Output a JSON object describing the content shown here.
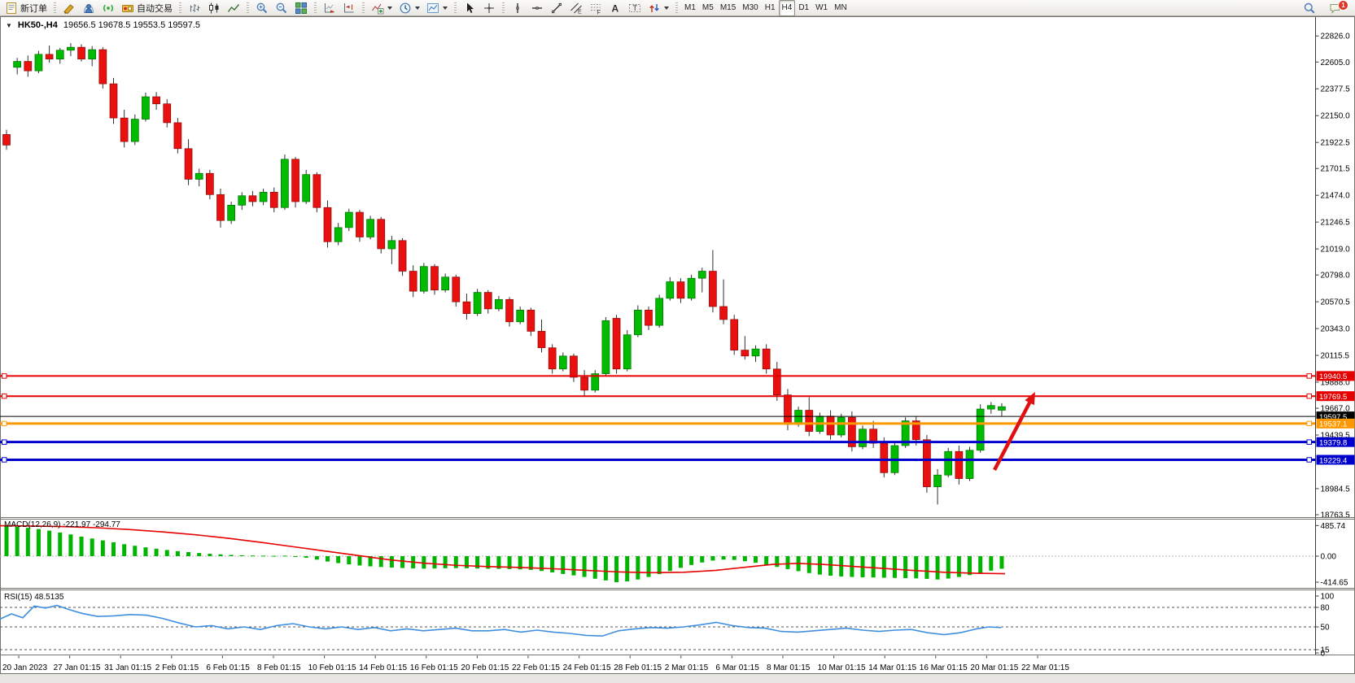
{
  "toolbar": {
    "groups": [
      {
        "items": [
          {
            "name": "new-order-button",
            "icon": "new-order-icon",
            "label": "新订单"
          }
        ]
      },
      {
        "items": [
          {
            "name": "metaeditor-button",
            "icon": "metaeditor-icon"
          },
          {
            "name": "community-button",
            "icon": "community-icon"
          },
          {
            "name": "signals-button",
            "icon": "signals-icon"
          },
          {
            "name": "auto-trading-button",
            "icon": "auto-trading-icon",
            "label": "自动交易"
          }
        ]
      },
      {
        "items": [
          {
            "name": "bar-chart-button",
            "icon": "bar-chart-icon"
          },
          {
            "name": "candlestick-chart-button",
            "icon": "candlestick-icon"
          },
          {
            "name": "line-chart-button",
            "icon": "line-chart-icon"
          }
        ]
      },
      {
        "items": [
          {
            "name": "zoom-in-button",
            "icon": "zoom-in-icon"
          },
          {
            "name": "zoom-out-button",
            "icon": "zoom-out-icon"
          },
          {
            "name": "tile-windows-button",
            "icon": "tile-windows-icon"
          }
        ]
      },
      {
        "items": [
          {
            "name": "auto-scroll-button",
            "icon": "auto-scroll-icon"
          },
          {
            "name": "chart-shift-button",
            "icon": "chart-shift-icon"
          }
        ]
      },
      {
        "items": [
          {
            "name": "indicators-button",
            "icon": "indicators-icon",
            "caret": true
          },
          {
            "name": "periods-button",
            "icon": "clock-icon",
            "caret": true
          },
          {
            "name": "templates-button",
            "icon": "template-icon",
            "caret": true
          }
        ]
      },
      {
        "items": [
          {
            "name": "cursor-button",
            "icon": "cursor-icon"
          },
          {
            "name": "crosshair-button",
            "icon": "crosshair-icon"
          }
        ]
      },
      {
        "items": [
          {
            "name": "vertical-line-button",
            "icon": "vertical-line-icon"
          },
          {
            "name": "horizontal-line-button",
            "icon": "horizontal-line-icon"
          },
          {
            "name": "trendline-button",
            "icon": "trendline-icon"
          },
          {
            "name": "equidistant-channel-button",
            "icon": "channel-icon"
          },
          {
            "name": "fibonacci-button",
            "icon": "fibonacci-icon"
          },
          {
            "name": "text-button",
            "icon": "text-icon"
          },
          {
            "name": "text-label-button",
            "icon": "text-label-icon"
          },
          {
            "name": "arrows-button",
            "icon": "arrows-icon",
            "caret": true
          }
        ]
      },
      {
        "items": [
          {
            "name": "timeframe-m1-button",
            "label": "M1",
            "tf": true
          },
          {
            "name": "timeframe-m5-button",
            "label": "M5",
            "tf": true
          },
          {
            "name": "timeframe-m15-button",
            "label": "M15",
            "tf": true
          },
          {
            "name": "timeframe-m30-button",
            "label": "M30",
            "tf": true
          },
          {
            "name": "timeframe-h1-button",
            "label": "H1",
            "tf": true
          },
          {
            "name": "timeframe-h4-button",
            "label": "H4",
            "tf": true,
            "active": true
          },
          {
            "name": "timeframe-d1-button",
            "label": "D1",
            "tf": true
          },
          {
            "name": "timeframe-w1-button",
            "label": "W1",
            "tf": true
          },
          {
            "name": "timeframe-mn-button",
            "label": "MN",
            "tf": true
          }
        ]
      }
    ],
    "right": [
      {
        "name": "search-button",
        "icon": "search-icon"
      },
      {
        "name": "notifications-button",
        "icon": "chat-icon",
        "badge": "1"
      }
    ]
  },
  "chart": {
    "collapse_glyph": "▼",
    "symbol_period": "HK50-,H4",
    "ohlc": "19656.5 19678.5 19553.5 19597.5"
  },
  "price_axis": {
    "labels": [
      "22826.0",
      "22605.0",
      "22377.5",
      "22150.0",
      "21922.5",
      "21701.5",
      "21474.0",
      "21246.5",
      "21019.0",
      "20798.0",
      "20570.5",
      "20343.0",
      "20115.5",
      "19888.0",
      "19667.0",
      "19439.5",
      "18984.5",
      "18763.5"
    ]
  },
  "price_lines": [
    {
      "value": 19940.5,
      "label": "19940.5",
      "color": "#e60000",
      "width": 2,
      "handles": true
    },
    {
      "value": 19769.5,
      "label": "19769.5",
      "color": "#e60000",
      "width": 2,
      "handles": true
    },
    {
      "value": 19597.5,
      "label": "19597.5",
      "color": "#000000",
      "width": 1,
      "handles": false
    },
    {
      "value": 19537.1,
      "label": "19537.1",
      "color": "#ff9800",
      "width": 3,
      "handles": true
    },
    {
      "value": 19379.8,
      "label": "19379.8",
      "color": "#0000cc",
      "width": 3,
      "handles": true
    },
    {
      "value": 19229.4,
      "label": "19229.4",
      "color": "#0000cc",
      "width": 3,
      "handles": true
    }
  ],
  "colors": {
    "bull": "#00bb00",
    "bull_stroke": "#006e00",
    "bear": "#ea1010",
    "bear_stroke": "#8a0a0a",
    "wick": "#303030",
    "macd_hist": "#00b400",
    "macd_signal": "#e60000",
    "rsi_line": "#3f8fdf",
    "arrow": "#e01010",
    "axis_text": "#000000"
  },
  "candles": [
    [
      21990,
      22030,
      21860,
      21900,
      "d"
    ],
    [
      22560,
      22640,
      22500,
      22610,
      "u"
    ],
    [
      22610,
      22660,
      22480,
      22530,
      "d"
    ],
    [
      22530,
      22700,
      22510,
      22670,
      "u"
    ],
    [
      22670,
      22745,
      22600,
      22630,
      "d"
    ],
    [
      22630,
      22725,
      22590,
      22705,
      "u"
    ],
    [
      22705,
      22765,
      22655,
      22730,
      "u"
    ],
    [
      22730,
      22755,
      22610,
      22630,
      "d"
    ],
    [
      22630,
      22740,
      22570,
      22710,
      "u"
    ],
    [
      22710,
      22730,
      22380,
      22420,
      "d"
    ],
    [
      22420,
      22470,
      22080,
      22130,
      "d"
    ],
    [
      22130,
      22200,
      21880,
      21930,
      "d"
    ],
    [
      21930,
      22160,
      21900,
      22120,
      "u"
    ],
    [
      22120,
      22345,
      22100,
      22310,
      "u"
    ],
    [
      22310,
      22350,
      22200,
      22250,
      "d"
    ],
    [
      22250,
      22290,
      22050,
      22090,
      "d"
    ],
    [
      22090,
      22130,
      21830,
      21870,
      "d"
    ],
    [
      21870,
      21950,
      21560,
      21610,
      "d"
    ],
    [
      21610,
      21700,
      21550,
      21660,
      "u"
    ],
    [
      21660,
      21690,
      21440,
      21480,
      "d"
    ],
    [
      21480,
      21530,
      21200,
      21260,
      "d"
    ],
    [
      21260,
      21420,
      21230,
      21390,
      "u"
    ],
    [
      21390,
      21500,
      21350,
      21470,
      "u"
    ],
    [
      21470,
      21510,
      21380,
      21420,
      "d"
    ],
    [
      21420,
      21530,
      21390,
      21500,
      "u"
    ],
    [
      21500,
      21540,
      21330,
      21370,
      "d"
    ],
    [
      21370,
      21820,
      21350,
      21780,
      "u"
    ],
    [
      21780,
      21800,
      21370,
      21420,
      "d"
    ],
    [
      21420,
      21690,
      21400,
      21650,
      "u"
    ],
    [
      21650,
      21670,
      21330,
      21370,
      "d"
    ],
    [
      21370,
      21430,
      21030,
      21080,
      "d"
    ],
    [
      21080,
      21240,
      21050,
      21200,
      "u"
    ],
    [
      21200,
      21360,
      21170,
      21330,
      "u"
    ],
    [
      21330,
      21350,
      21080,
      21120,
      "d"
    ],
    [
      21120,
      21300,
      21100,
      21270,
      "u"
    ],
    [
      21270,
      21290,
      20980,
      21020,
      "d"
    ],
    [
      21020,
      21130,
      20890,
      21090,
      "u"
    ],
    [
      21090,
      21110,
      20790,
      20830,
      "d"
    ],
    [
      20830,
      20880,
      20610,
      20660,
      "d"
    ],
    [
      20660,
      20900,
      20640,
      20870,
      "u"
    ],
    [
      20870,
      20890,
      20630,
      20670,
      "d"
    ],
    [
      20670,
      20810,
      20650,
      20780,
      "u"
    ],
    [
      20780,
      20800,
      20530,
      20570,
      "d"
    ],
    [
      20570,
      20640,
      20420,
      20470,
      "d"
    ],
    [
      20470,
      20680,
      20450,
      20650,
      "u"
    ],
    [
      20650,
      20670,
      20470,
      20510,
      "d"
    ],
    [
      20510,
      20620,
      20490,
      20590,
      "u"
    ],
    [
      20590,
      20610,
      20360,
      20400,
      "d"
    ],
    [
      20400,
      20530,
      20380,
      20500,
      "u"
    ],
    [
      20500,
      20520,
      20280,
      20320,
      "d"
    ],
    [
      20320,
      20420,
      20140,
      20180,
      "d"
    ],
    [
      20180,
      20210,
      19960,
      20000,
      "d"
    ],
    [
      20000,
      20140,
      19980,
      20110,
      "u"
    ],
    [
      20110,
      20130,
      19890,
      19930,
      "d"
    ],
    [
      19930,
      19990,
      19770,
      19820,
      "d"
    ],
    [
      19820,
      19990,
      19800,
      19960,
      "u"
    ],
    [
      19960,
      20440,
      19940,
      20410,
      "u"
    ],
    [
      20430,
      20460,
      19960,
      20000,
      "d"
    ],
    [
      20000,
      20330,
      19980,
      20290,
      "u"
    ],
    [
      20290,
      20540,
      20270,
      20500,
      "u"
    ],
    [
      20500,
      20530,
      20330,
      20370,
      "d"
    ],
    [
      20370,
      20630,
      20350,
      20600,
      "u"
    ],
    [
      20600,
      20780,
      20580,
      20740,
      "u"
    ],
    [
      20740,
      20770,
      20560,
      20600,
      "d"
    ],
    [
      20600,
      20800,
      20580,
      20770,
      "u"
    ],
    [
      20770,
      20860,
      20650,
      20830,
      "u"
    ],
    [
      20830,
      21010,
      20480,
      20530,
      "d"
    ],
    [
      20530,
      20760,
      20380,
      20420,
      "d"
    ],
    [
      20420,
      20460,
      20120,
      20160,
      "d"
    ],
    [
      20160,
      20280,
      20080,
      20110,
      "d"
    ],
    [
      20110,
      20200,
      20060,
      20170,
      "u"
    ],
    [
      20170,
      20210,
      19960,
      20000,
      "d"
    ],
    [
      20000,
      20060,
      19730,
      19780,
      "d"
    ],
    [
      19780,
      19830,
      19480,
      19530,
      "d"
    ],
    [
      19530,
      19680,
      19510,
      19650,
      "u"
    ],
    [
      19650,
      19760,
      19430,
      19470,
      "d"
    ],
    [
      19470,
      19630,
      19450,
      19600,
      "u"
    ],
    [
      19600,
      19650,
      19400,
      19440,
      "d"
    ],
    [
      19440,
      19620,
      19420,
      19590,
      "u"
    ],
    [
      19590,
      19640,
      19300,
      19340,
      "d"
    ],
    [
      19340,
      19520,
      19320,
      19490,
      "u"
    ],
    [
      19490,
      19560,
      19330,
      19370,
      "d"
    ],
    [
      19370,
      19420,
      19080,
      19120,
      "d"
    ],
    [
      19120,
      19380,
      19100,
      19350,
      "u"
    ],
    [
      19350,
      19590,
      19330,
      19560,
      "u"
    ],
    [
      19560,
      19600,
      19350,
      19400,
      "d"
    ],
    [
      19400,
      19440,
      18950,
      19000,
      "d"
    ],
    [
      19000,
      19150,
      18850,
      19100,
      "u"
    ],
    [
      19100,
      19330,
      19080,
      19300,
      "u"
    ],
    [
      19300,
      19350,
      19020,
      19070,
      "d"
    ],
    [
      19070,
      19340,
      19050,
      19310,
      "u"
    ],
    [
      19310,
      19700,
      19290,
      19660,
      "u"
    ],
    [
      19660,
      19720,
      19620,
      19690,
      "u"
    ],
    [
      19650,
      19710,
      19600,
      19680,
      "u"
    ]
  ],
  "macd": {
    "label": "MACD(12,26,9) -221.97 -294.77",
    "axis": [
      {
        "t": "485.74",
        "v": 485.74
      },
      {
        "t": "0.00",
        "v": 0
      },
      {
        "t": "-414.65",
        "v": -414.65
      }
    ],
    "bars": [
      480,
      465,
      450,
      430,
      405,
      375,
      345,
      310,
      280,
      250,
      220,
      190,
      165,
      140,
      118,
      98,
      80,
      64,
      50,
      38,
      28,
      20,
      14,
      10,
      8,
      5,
      8,
      0,
      -25,
      -55,
      -85,
      -110,
      -130,
      -148,
      -162,
      -172,
      -180,
      -188,
      -195,
      -198,
      -196,
      -192,
      -190,
      -192,
      -196,
      -200,
      -202,
      -205,
      -210,
      -218,
      -235,
      -258,
      -282,
      -305,
      -330,
      -358,
      -385,
      -414,
      -400,
      -370,
      -330,
      -285,
      -235,
      -185,
      -140,
      -100,
      -70,
      -55,
      -60,
      -80,
      -105,
      -135,
      -170,
      -205,
      -238,
      -268,
      -292,
      -310,
      -322,
      -330,
      -335,
      -338,
      -342,
      -345,
      -348,
      -352,
      -360,
      -370,
      -355,
      -330,
      -300,
      -265,
      -230,
      -200
    ],
    "signal": [
      [
        0,
        483
      ],
      [
        40,
        478
      ],
      [
        80,
        468
      ],
      [
        120,
        450
      ],
      [
        160,
        422
      ],
      [
        200,
        385
      ],
      [
        240,
        340
      ],
      [
        280,
        285
      ],
      [
        320,
        220
      ],
      [
        360,
        150
      ],
      [
        400,
        80
      ],
      [
        440,
        10
      ],
      [
        480,
        -60
      ],
      [
        520,
        -110
      ],
      [
        560,
        -145
      ],
      [
        600,
        -165
      ],
      [
        640,
        -180
      ],
      [
        680,
        -200
      ],
      [
        720,
        -225
      ],
      [
        760,
        -250
      ],
      [
        800,
        -262
      ],
      [
        840,
        -255
      ],
      [
        880,
        -225
      ],
      [
        920,
        -170
      ],
      [
        950,
        -130
      ],
      [
        980,
        -115
      ],
      [
        1010,
        -130
      ],
      [
        1040,
        -155
      ],
      [
        1080,
        -190
      ],
      [
        1120,
        -225
      ],
      [
        1160,
        -255
      ],
      [
        1200,
        -272
      ],
      [
        1235,
        -278
      ]
    ]
  },
  "rsi": {
    "label": "RSI(15) 48.5135",
    "axis": [
      {
        "t": "100",
        "v": 100,
        "line": false
      },
      {
        "t": "80",
        "v": 80,
        "line": true
      },
      {
        "t": "50",
        "v": 50,
        "line": true
      },
      {
        "t": "15",
        "v": 15,
        "line": true
      },
      {
        "t": "0",
        "v": 0,
        "line": false
      }
    ],
    "points": [
      [
        0,
        62
      ],
      [
        14,
        70
      ],
      [
        28,
        64
      ],
      [
        42,
        82
      ],
      [
        56,
        79
      ],
      [
        70,
        83
      ],
      [
        84,
        77
      ],
      [
        100,
        71
      ],
      [
        120,
        66
      ],
      [
        140,
        67
      ],
      [
        160,
        69
      ],
      [
        180,
        68
      ],
      [
        200,
        63
      ],
      [
        220,
        56
      ],
      [
        240,
        50
      ],
      [
        260,
        52
      ],
      [
        280,
        47
      ],
      [
        300,
        50
      ],
      [
        320,
        46
      ],
      [
        340,
        52
      ],
      [
        360,
        55
      ],
      [
        380,
        50
      ],
      [
        400,
        47
      ],
      [
        420,
        50
      ],
      [
        440,
        46
      ],
      [
        460,
        49
      ],
      [
        480,
        44
      ],
      [
        500,
        47
      ],
      [
        520,
        44
      ],
      [
        540,
        46
      ],
      [
        560,
        48
      ],
      [
        580,
        44
      ],
      [
        600,
        44
      ],
      [
        620,
        46
      ],
      [
        640,
        42
      ],
      [
        660,
        45
      ],
      [
        680,
        42
      ],
      [
        700,
        40
      ],
      [
        720,
        37
      ],
      [
        740,
        36
      ],
      [
        760,
        44
      ],
      [
        780,
        47
      ],
      [
        800,
        49
      ],
      [
        820,
        48
      ],
      [
        840,
        50
      ],
      [
        860,
        53
      ],
      [
        880,
        57
      ],
      [
        900,
        52
      ],
      [
        920,
        49
      ],
      [
        940,
        48
      ],
      [
        960,
        43
      ],
      [
        980,
        42
      ],
      [
        1000,
        44
      ],
      [
        1020,
        46
      ],
      [
        1040,
        48
      ],
      [
        1060,
        45
      ],
      [
        1080,
        43
      ],
      [
        1100,
        45
      ],
      [
        1120,
        46
      ],
      [
        1140,
        41
      ],
      [
        1160,
        38
      ],
      [
        1180,
        41
      ],
      [
        1200,
        47
      ],
      [
        1215,
        50
      ],
      [
        1230,
        49
      ]
    ]
  },
  "date_axis": {
    "labels": [
      "20 Jan 2023",
      "27 Jan 01:15",
      "31 Jan 01:15",
      "2 Feb 01:15",
      "6 Feb 01:15",
      "8 Feb 01:15",
      "10 Feb 01:15",
      "14 Feb 01:15",
      "16 Feb 01:15",
      "20 Feb 01:15",
      "22 Feb 01:15",
      "24 Feb 01:15",
      "28 Feb 01:15",
      "2 Mar 01:15",
      "6 Mar 01:15",
      "8 Mar 01:15",
      "10 Mar 01:15",
      "14 Mar 01:15",
      "16 Mar 01:15",
      "20 Mar 01:15",
      "22 Mar 01:15"
    ]
  },
  "annotation_arrow": {
    "from": [
      1222,
      578
    ],
    "to": [
      1272,
      482
    ]
  }
}
